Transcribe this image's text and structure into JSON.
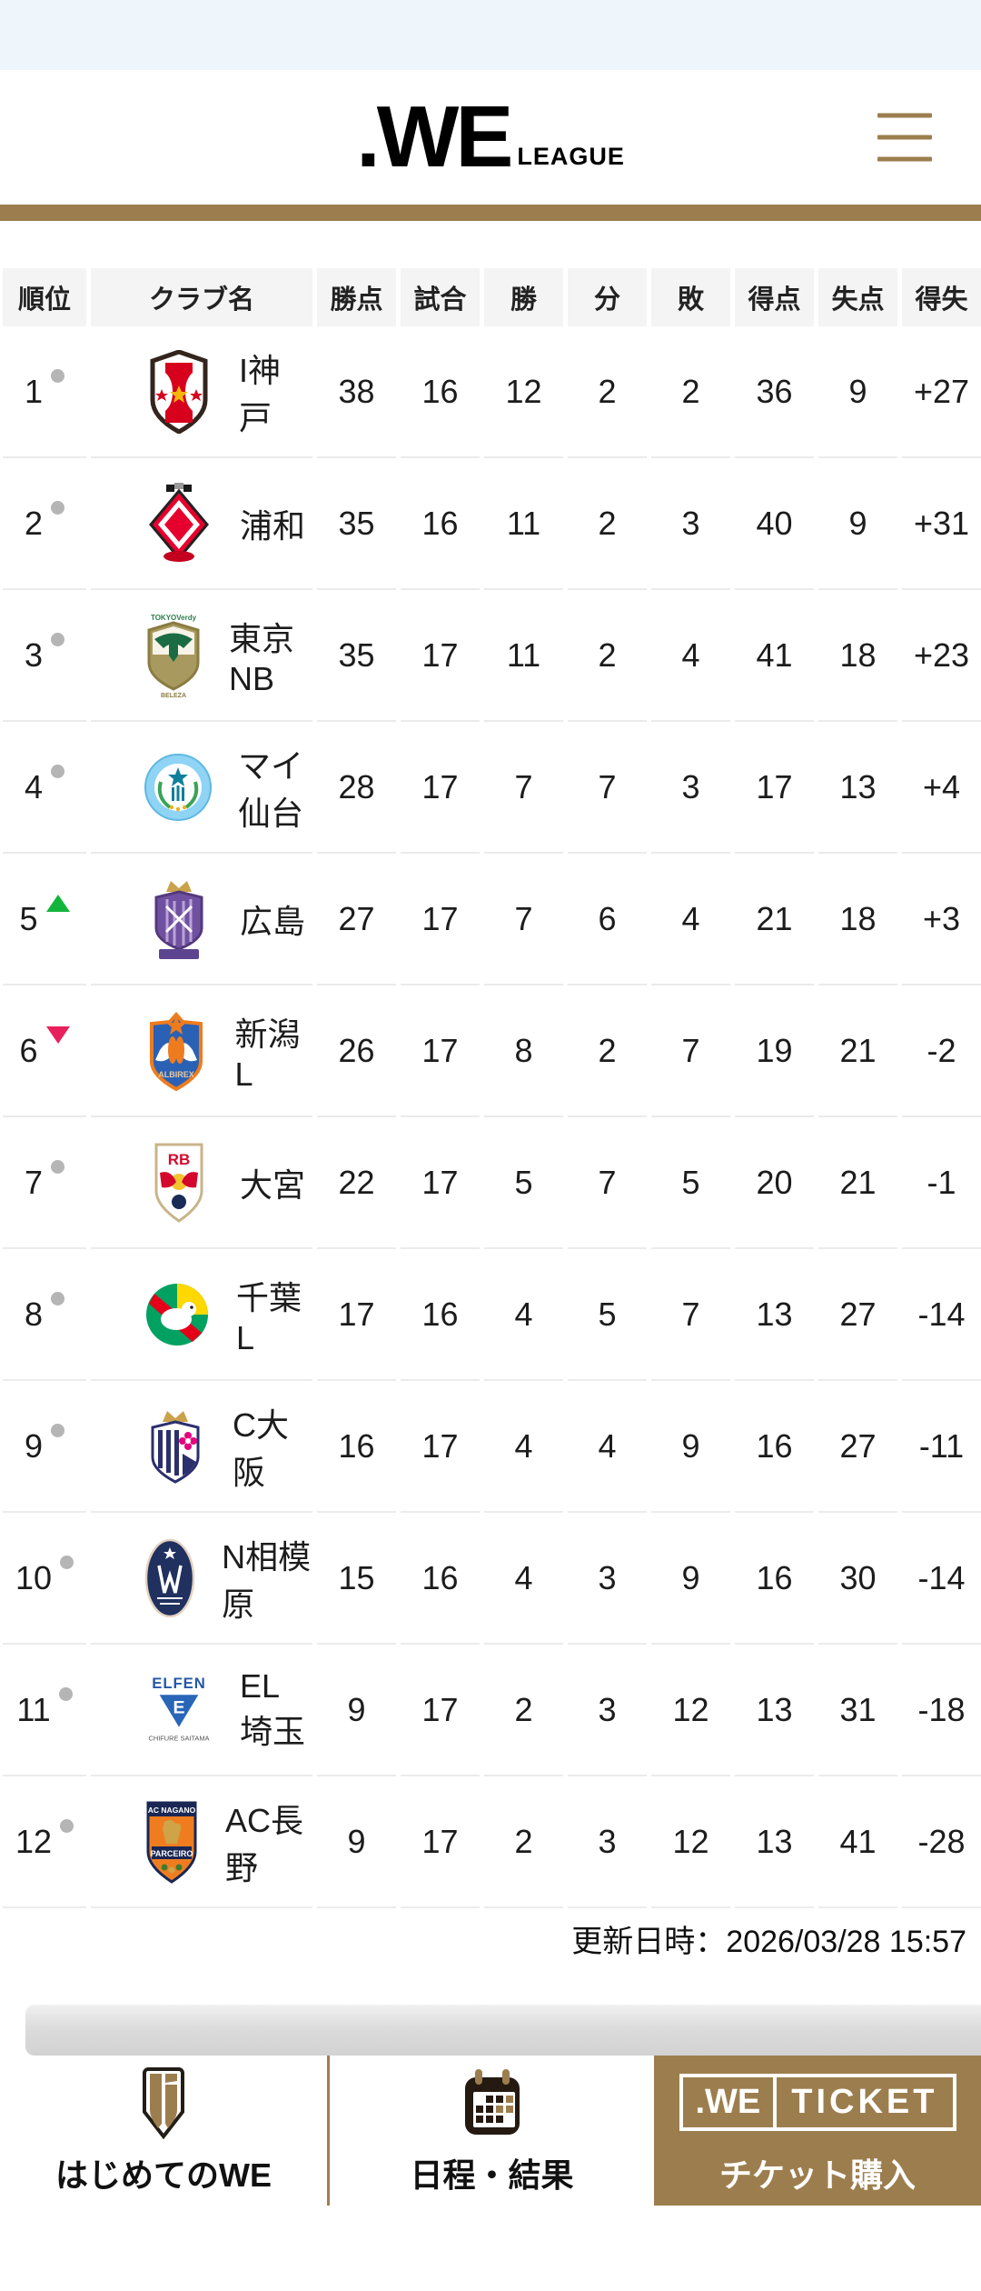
{
  "header": {
    "logo": {
      "main": ".WE",
      "sub": "LEAGUE"
    }
  },
  "table": {
    "columns": [
      "順位",
      "クラブ名",
      "勝点",
      "試合",
      "勝",
      "分",
      "敗",
      "得点",
      "失点",
      "得失"
    ],
    "rows": [
      {
        "rank": "1",
        "movement": "same",
        "club": "I神戸",
        "crest": "inac-kobe",
        "stats": [
          "38",
          "16",
          "12",
          "2",
          "2",
          "36",
          "9",
          "+27"
        ]
      },
      {
        "rank": "2",
        "movement": "same",
        "club": "浦和",
        "crest": "urawa",
        "stats": [
          "35",
          "16",
          "11",
          "2",
          "3",
          "40",
          "9",
          "+31"
        ]
      },
      {
        "rank": "3",
        "movement": "same",
        "club": "東京NB",
        "crest": "tokyo-nb",
        "stats": [
          "35",
          "17",
          "11",
          "2",
          "4",
          "41",
          "18",
          "+23"
        ]
      },
      {
        "rank": "4",
        "movement": "same",
        "club": "マイ仙台",
        "crest": "mynavi-sendai",
        "stats": [
          "28",
          "17",
          "7",
          "7",
          "3",
          "17",
          "13",
          "+4"
        ]
      },
      {
        "rank": "5",
        "movement": "up",
        "club": "広島",
        "crest": "hiroshima",
        "stats": [
          "27",
          "17",
          "7",
          "6",
          "4",
          "21",
          "18",
          "+3"
        ]
      },
      {
        "rank": "6",
        "movement": "down",
        "club": "新潟L",
        "crest": "niigata",
        "stats": [
          "26",
          "17",
          "8",
          "2",
          "7",
          "19",
          "21",
          "-2"
        ]
      },
      {
        "rank": "7",
        "movement": "same",
        "club": "大宮",
        "crest": "omiya",
        "stats": [
          "22",
          "17",
          "5",
          "7",
          "5",
          "20",
          "21",
          "-1"
        ]
      },
      {
        "rank": "8",
        "movement": "same",
        "club": "千葉L",
        "crest": "chiba",
        "stats": [
          "17",
          "16",
          "4",
          "5",
          "7",
          "13",
          "27",
          "-14"
        ]
      },
      {
        "rank": "9",
        "movement": "same",
        "club": "C大阪",
        "crest": "c-osaka",
        "stats": [
          "16",
          "17",
          "4",
          "4",
          "9",
          "16",
          "27",
          "-11"
        ]
      },
      {
        "rank": "10",
        "movement": "same",
        "club": "N相模原",
        "crest": "sagamihara",
        "stats": [
          "15",
          "16",
          "4",
          "3",
          "9",
          "16",
          "30",
          "-14"
        ]
      },
      {
        "rank": "11",
        "movement": "same",
        "club": "EL埼玉",
        "crest": "el-saitama",
        "stats": [
          "9",
          "17",
          "2",
          "3",
          "12",
          "13",
          "31",
          "-18"
        ]
      },
      {
        "rank": "12",
        "movement": "same",
        "club": "AC長野",
        "crest": "ac-nagano",
        "stats": [
          "9",
          "17",
          "2",
          "3",
          "12",
          "13",
          "41",
          "-28"
        ]
      }
    ]
  },
  "updated": {
    "label": "更新日時：2026/03/28 15:57"
  },
  "bottom_nav": {
    "items": [
      {
        "id": "first-time",
        "label": "はじめてのWE",
        "icon": "beginner-mark-icon"
      },
      {
        "id": "schedule",
        "label": "日程・結果",
        "icon": "calendar-icon"
      },
      {
        "id": "ticket",
        "label": "チケット購入",
        "icon": "we-ticket-logo",
        "logo": {
          "left": ".WE",
          "right": "TICKET"
        }
      }
    ]
  },
  "colors": {
    "accent_gold": "#9C7E4E",
    "status_bar_bg": "#EEF5FB",
    "header_cell_bg": "#F4F4F4",
    "row_separator": "#EBEBEB",
    "text": "#1C1C1C",
    "rank_same_dot": "#B5B5B5",
    "rank_up_green": "#12B53B",
    "rank_down_pink": "#E7215C",
    "scroll_band": "#D8D8D8"
  }
}
